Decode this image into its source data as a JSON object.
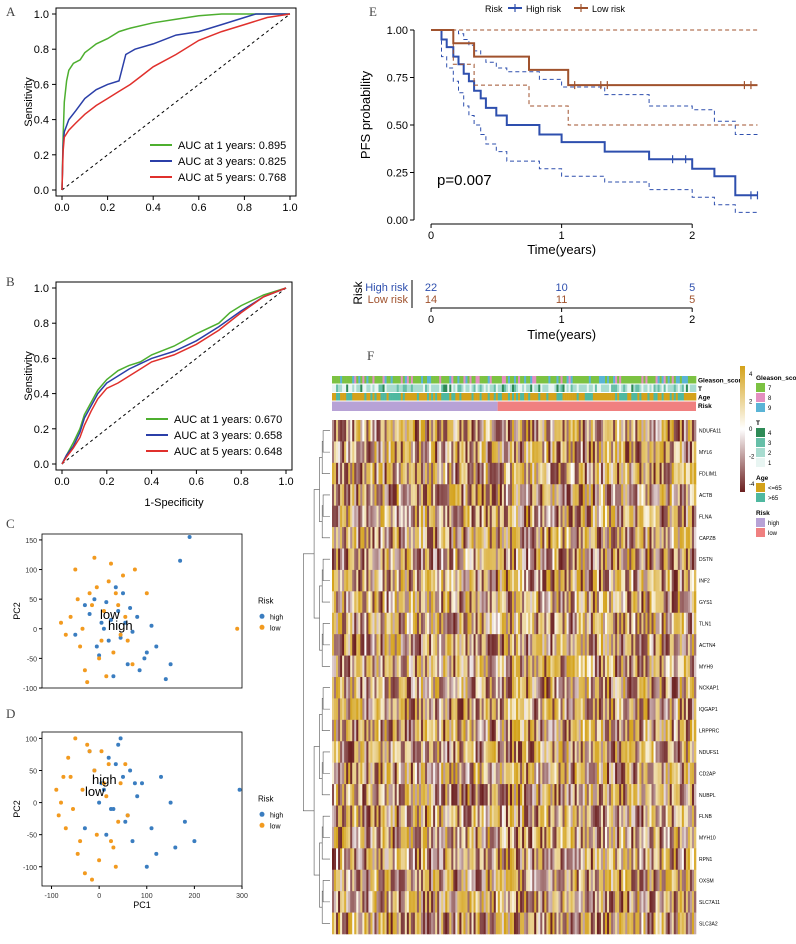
{
  "panels": {
    "A": "A",
    "B": "B",
    "C": "C",
    "D": "D",
    "E": "E",
    "F": "F"
  },
  "chart_data": [
    {
      "id": "A",
      "type": "line",
      "title": "",
      "xlabel": "",
      "ylabel": "Sensitivity",
      "xlim": [
        0,
        1
      ],
      "ylim": [
        0,
        1
      ],
      "xticks": [
        "0.0",
        "0.2",
        "0.4",
        "0.6",
        "0.8",
        "1.0"
      ],
      "yticks": [
        "0.0",
        "0.2",
        "0.4",
        "0.6",
        "0.8",
        "1.0"
      ],
      "legend_position": "bottom-right",
      "series": [
        {
          "name": "AUC at 1 years: 0.895",
          "color": "#4daf2f",
          "x": [
            0,
            0.005,
            0.01,
            0.02,
            0.03,
            0.05,
            0.08,
            0.1,
            0.12,
            0.15,
            0.2,
            0.25,
            0.3,
            0.4,
            0.5,
            0.6,
            0.7,
            0.8,
            0.9,
            1.0
          ],
          "y": [
            0,
            0.3,
            0.5,
            0.62,
            0.68,
            0.72,
            0.74,
            0.78,
            0.8,
            0.83,
            0.86,
            0.9,
            0.92,
            0.95,
            0.97,
            0.99,
            1.0,
            1.0,
            1.0,
            1.0
          ]
        },
        {
          "name": "AUC at 3 years: 0.825",
          "color": "#2b3fa8",
          "x": [
            0,
            0.005,
            0.01,
            0.03,
            0.06,
            0.1,
            0.15,
            0.2,
            0.25,
            0.28,
            0.32,
            0.4,
            0.5,
            0.6,
            0.7,
            0.8,
            0.85,
            0.9,
            1.0
          ],
          "y": [
            0,
            0.25,
            0.33,
            0.4,
            0.45,
            0.52,
            0.57,
            0.6,
            0.62,
            0.77,
            0.8,
            0.83,
            0.88,
            0.9,
            0.94,
            0.98,
            1.0,
            1.0,
            1.0
          ]
        },
        {
          "name": "AUC at 5 years: 0.768",
          "color": "#e0302c",
          "x": [
            0,
            0.005,
            0.01,
            0.03,
            0.06,
            0.1,
            0.15,
            0.2,
            0.25,
            0.3,
            0.35,
            0.4,
            0.5,
            0.6,
            0.7,
            0.8,
            0.9,
            1.0
          ],
          "y": [
            0,
            0.22,
            0.3,
            0.34,
            0.38,
            0.43,
            0.48,
            0.52,
            0.56,
            0.6,
            0.65,
            0.7,
            0.77,
            0.85,
            0.9,
            0.94,
            0.98,
            1.0
          ]
        }
      ]
    },
    {
      "id": "B",
      "type": "line",
      "title": "",
      "xlabel": "1-Specificity",
      "ylabel": "Sensitivity",
      "xlim": [
        0,
        1
      ],
      "ylim": [
        0,
        1
      ],
      "xticks": [
        "0.0",
        "0.2",
        "0.4",
        "0.6",
        "0.8",
        "1.0"
      ],
      "yticks": [
        "0.0",
        "0.2",
        "0.4",
        "0.6",
        "0.8",
        "1.0"
      ],
      "legend_position": "bottom-right",
      "series": [
        {
          "name": "AUC at 1 years: 0.670",
          "color": "#4daf2f",
          "x": [
            0,
            0.02,
            0.05,
            0.08,
            0.1,
            0.13,
            0.16,
            0.2,
            0.25,
            0.3,
            0.35,
            0.4,
            0.5,
            0.6,
            0.7,
            0.75,
            0.8,
            0.9,
            1.0
          ],
          "y": [
            0,
            0.05,
            0.12,
            0.2,
            0.28,
            0.35,
            0.42,
            0.48,
            0.53,
            0.56,
            0.58,
            0.62,
            0.67,
            0.74,
            0.8,
            0.86,
            0.9,
            0.96,
            1.0
          ]
        },
        {
          "name": "AUC at 3 years: 0.658",
          "color": "#2b3fa8",
          "x": [
            0,
            0.02,
            0.05,
            0.08,
            0.1,
            0.13,
            0.16,
            0.2,
            0.25,
            0.3,
            0.35,
            0.4,
            0.5,
            0.6,
            0.7,
            0.8,
            0.9,
            1.0
          ],
          "y": [
            0,
            0.05,
            0.1,
            0.18,
            0.26,
            0.33,
            0.4,
            0.46,
            0.5,
            0.54,
            0.57,
            0.6,
            0.64,
            0.7,
            0.78,
            0.87,
            0.95,
            1.0
          ]
        },
        {
          "name": "AUC at 5 years: 0.648",
          "color": "#e0302c",
          "x": [
            0,
            0.02,
            0.05,
            0.08,
            0.1,
            0.13,
            0.16,
            0.2,
            0.25,
            0.3,
            0.35,
            0.4,
            0.5,
            0.6,
            0.7,
            0.8,
            0.9,
            1.0
          ],
          "y": [
            0,
            0.04,
            0.09,
            0.15,
            0.22,
            0.3,
            0.37,
            0.43,
            0.46,
            0.5,
            0.54,
            0.58,
            0.62,
            0.68,
            0.76,
            0.86,
            0.95,
            1.0
          ]
        }
      ]
    },
    {
      "id": "C",
      "type": "scatter",
      "xlabel": "",
      "ylabel": "PC2",
      "xlim": [
        -120,
        300
      ],
      "ylim": [
        -100,
        160
      ],
      "xticks": [],
      "yticks": [
        "-100",
        "-50",
        "0",
        "50",
        "100",
        "150"
      ],
      "legend_title": "Risk",
      "legend": [
        {
          "label": "high",
          "color": "#3a7dc0"
        },
        {
          "label": "low",
          "color": "#f29a1f"
        }
      ],
      "annotations": [
        "low",
        "high"
      ],
      "series": [
        {
          "name": "high",
          "color": "#3a7dc0",
          "x": [
            5,
            20,
            40,
            -30,
            60,
            80,
            100,
            120,
            150,
            190,
            170,
            -10,
            30,
            50,
            -50,
            10,
            0,
            25,
            45,
            65,
            -20,
            85,
            140,
            110,
            70,
            35,
            -5,
            15,
            55,
            95
          ],
          "y": [
            10,
            -20,
            30,
            40,
            -60,
            20,
            -40,
            -30,
            -60,
            155,
            115,
            50,
            -80,
            60,
            -10,
            0,
            -45,
            15,
            -15,
            35,
            25,
            -70,
            -85,
            5,
            -5,
            70,
            -30,
            45,
            10,
            -50
          ]
        },
        {
          "name": "low",
          "color": "#f29a1f",
          "x": [
            -60,
            -40,
            -20,
            0,
            20,
            40,
            60,
            -80,
            -50,
            -30,
            -10,
            10,
            30,
            50,
            70,
            -70,
            -45,
            -25,
            -5,
            15,
            35,
            55,
            75,
            -15,
            5,
            25,
            45,
            -35,
            100,
            290
          ],
          "y": [
            20,
            -30,
            60,
            -50,
            80,
            40,
            -20,
            10,
            100,
            -70,
            120,
            30,
            -40,
            90,
            -60,
            -10,
            50,
            -90,
            70,
            -80,
            60,
            20,
            100,
            40,
            -20,
            110,
            -10,
            0,
            60,
            0
          ]
        }
      ]
    },
    {
      "id": "D",
      "type": "scatter",
      "xlabel": "PC1",
      "ylabel": "PC2",
      "xlim": [
        -120,
        300
      ],
      "ylim": [
        -130,
        110
      ],
      "xticks": [
        "-100",
        "0",
        "100",
        "200",
        "300"
      ],
      "yticks": [
        "-100",
        "-50",
        "0",
        "50",
        "100"
      ],
      "legend_title": "Risk",
      "legend": [
        {
          "label": "high",
          "color": "#3a7dc0"
        },
        {
          "label": "low",
          "color": "#f29a1f"
        }
      ],
      "annotations": [
        "high",
        "low"
      ],
      "series": [
        {
          "name": "high",
          "color": "#3a7dc0",
          "x": [
            10,
            30,
            50,
            70,
            90,
            -10,
            -30,
            120,
            150,
            180,
            200,
            295,
            20,
            40,
            60,
            80,
            100,
            0,
            15,
            35,
            55,
            75,
            -20,
            130,
            160,
            110,
            45,
            25,
            5,
            65
          ],
          "y": [
            20,
            -10,
            40,
            -60,
            30,
            50,
            -40,
            -80,
            0,
            -30,
            -60,
            20,
            70,
            90,
            -20,
            10,
            -100,
            0,
            -50,
            60,
            -30,
            30,
            80,
            40,
            -70,
            -40,
            100,
            -10,
            30,
            50
          ]
        },
        {
          "name": "low",
          "color": "#f29a1f",
          "x": [
            -80,
            -60,
            -40,
            -20,
            0,
            20,
            40,
            -90,
            -70,
            -50,
            -30,
            -10,
            10,
            30,
            -85,
            -65,
            -45,
            -25,
            -5,
            15,
            35,
            55,
            -75,
            -55,
            -35,
            -15,
            5,
            25,
            45,
            60
          ],
          "y": [
            0,
            40,
            -60,
            80,
            -90,
            60,
            -30,
            20,
            -40,
            100,
            -110,
            50,
            30,
            -70,
            -20,
            70,
            -80,
            90,
            -50,
            10,
            -100,
            60,
            40,
            -10,
            20,
            -120,
            80,
            -60,
            30,
            -20
          ]
        }
      ]
    },
    {
      "id": "E",
      "type": "line",
      "xlabel": "Time(years)",
      "ylabel": "PFS probability",
      "xlim": [
        -0.1,
        2.55
      ],
      "ylim": [
        0,
        1.0
      ],
      "xticks": [
        "0",
        "1",
        "2"
      ],
      "yticks": [
        "0.00",
        "0.25",
        "0.50",
        "0.75",
        "1.00"
      ],
      "legend_title": "Risk",
      "annotation": "p=0.007",
      "series": [
        {
          "name": "High risk",
          "color": "#2e4fae",
          "x": [
            0,
            0.08,
            0.12,
            0.17,
            0.21,
            0.25,
            0.29,
            0.33,
            0.38,
            0.42,
            0.5,
            0.58,
            0.67,
            0.83,
            1.0,
            1.17,
            1.33,
            1.5,
            1.67,
            1.83,
            2.0,
            2.17,
            2.33,
            2.5
          ],
          "y": [
            1.0,
            0.95,
            0.91,
            0.86,
            0.82,
            0.77,
            0.73,
            0.68,
            0.64,
            0.59,
            0.55,
            0.5,
            0.5,
            0.45,
            0.41,
            0.41,
            0.36,
            0.36,
            0.32,
            0.32,
            0.27,
            0.23,
            0.13,
            0.13
          ],
          "ci_lower": [
            1.0,
            0.86,
            0.8,
            0.73,
            0.67,
            0.6,
            0.55,
            0.5,
            0.45,
            0.4,
            0.36,
            0.31,
            0.31,
            0.27,
            0.23,
            0.23,
            0.2,
            0.2,
            0.16,
            0.16,
            0.12,
            0.08,
            0.04,
            0.04
          ],
          "ci_upper": [
            1.0,
            1.0,
            1.0,
            1.0,
            0.98,
            0.95,
            0.92,
            0.89,
            0.86,
            0.83,
            0.8,
            0.78,
            0.78,
            0.74,
            0.7,
            0.7,
            0.66,
            0.66,
            0.6,
            0.6,
            0.58,
            0.52,
            0.45,
            0.45
          ]
        },
        {
          "name": "Low risk",
          "color": "#a0522d",
          "x": [
            0,
            0.17,
            0.25,
            0.33,
            0.5,
            0.75,
            1.0,
            1.05,
            1.5,
            2.0,
            2.5
          ],
          "y": [
            1.0,
            0.93,
            0.93,
            0.86,
            0.86,
            0.79,
            0.79,
            0.71,
            0.71,
            0.71,
            0.71
          ],
          "ci_lower": [
            1.0,
            0.82,
            0.82,
            0.71,
            0.71,
            0.6,
            0.6,
            0.5,
            0.5,
            0.5,
            0.5
          ],
          "ci_upper": [
            1.0,
            1.0,
            1.0,
            1.0,
            1.0,
            1.0,
            1.0,
            1.0,
            1.0,
            1.0,
            1.0
          ]
        }
      ],
      "risk_table": {
        "ylabel": "Risk",
        "xlabel": "Time(years)",
        "times": [
          "0",
          "1",
          "2"
        ],
        "rows": [
          {
            "name": "High risk",
            "color": "#2e4fae",
            "values": [
              "22",
              "10",
              "5"
            ]
          },
          {
            "name": "Low risk",
            "color": "#a0522d",
            "values": [
              "14",
              "11",
              "5"
            ]
          }
        ]
      }
    },
    {
      "id": "F",
      "type": "heatmap",
      "genes": [
        "NDUFA11",
        "MYL6",
        "FDLIM1",
        "ACTB",
        "FLNA",
        "CAPZB",
        "DSTN",
        "INF2",
        "GYS1",
        "TLN1",
        "ACTN4",
        "MYH9",
        "NCKAP1",
        "IQGAP1",
        "LRPPRC",
        "NDUFS1",
        "CD2AP",
        "NUBPL",
        "FLNB",
        "MYH10",
        "RPN1",
        "OXSM",
        "SLC7A11",
        "SLC3A2"
      ],
      "annotation_tracks": [
        "Gleason_score",
        "T",
        "Age",
        "Risk"
      ],
      "color_scale": {
        "ticks": [
          "4",
          "2",
          "0",
          "-2",
          "-4"
        ],
        "high": "#d4a21a",
        "mid": "#ffffff",
        "low": "#6b1f1f"
      },
      "legends": [
        {
          "title": "Gleason_score",
          "items": [
            {
              "label": "7",
              "color": "#7cc242"
            },
            {
              "label": "8",
              "color": "#e48fc0"
            },
            {
              "label": "9",
              "color": "#5ab4d6"
            }
          ]
        },
        {
          "title": "T",
          "items": [
            {
              "label": "4",
              "color": "#2e8b57"
            },
            {
              "label": "3",
              "color": "#66bfa8"
            },
            {
              "label": "2",
              "color": "#a8dcd0"
            },
            {
              "label": "1",
              "color": "#e8f5f2"
            }
          ]
        },
        {
          "title": "Age",
          "items": [
            {
              "label": "<=65",
              "color": "#d4a21a"
            },
            {
              "label": ">65",
              "color": "#4fb8a0"
            }
          ]
        },
        {
          "title": "Risk",
          "items": [
            {
              "label": "high",
              "color": "#b7a2d6"
            },
            {
              "label": "low",
              "color": "#f08080"
            }
          ]
        }
      ]
    }
  ]
}
